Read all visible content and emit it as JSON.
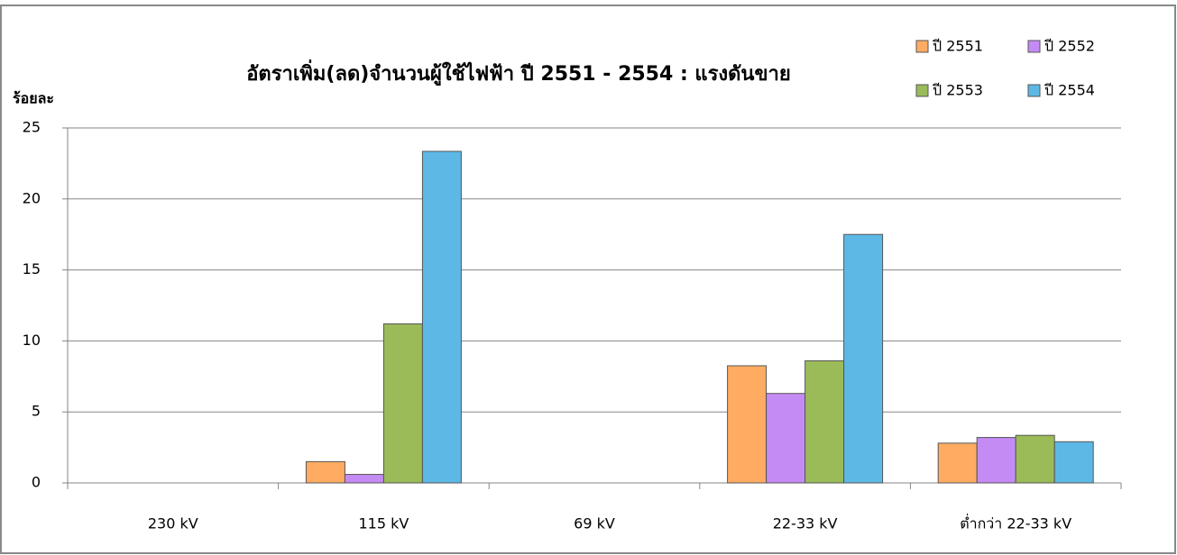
{
  "chart_data": {
    "type": "bar",
    "title": "อัตราเพิ่ม(ลด)จำนวนผู้ใช้ไฟฟ้า ปี 2551 - 2554 : แรงดันขาย",
    "y_label": "ร้อยละ",
    "categories": [
      "230 kV",
      "115 kV",
      "69 kV",
      "22-33 kV",
      "ต่ำกว่า 22-33 kV"
    ],
    "series": [
      {
        "name": "ปี 2551",
        "color": "#ffac62",
        "values": [
          0,
          1.5,
          0,
          8.25,
          2.8
        ]
      },
      {
        "name": "ปี 2552",
        "color": "#c58bf5",
        "values": [
          0,
          0.6,
          0,
          6.3,
          3.2
        ]
      },
      {
        "name": "ปี 2553",
        "color": "#9bbb59",
        "values": [
          0,
          11.2,
          0,
          8.6,
          3.35
        ]
      },
      {
        "name": "ปี 2554",
        "color": "#5db8e6",
        "values": [
          0,
          23.35,
          0,
          17.5,
          2.9
        ]
      }
    ],
    "ylim": [
      0,
      25
    ],
    "yticks": [
      0,
      5,
      10,
      15,
      20,
      25
    ],
    "grid": true,
    "legend": "top-right"
  }
}
